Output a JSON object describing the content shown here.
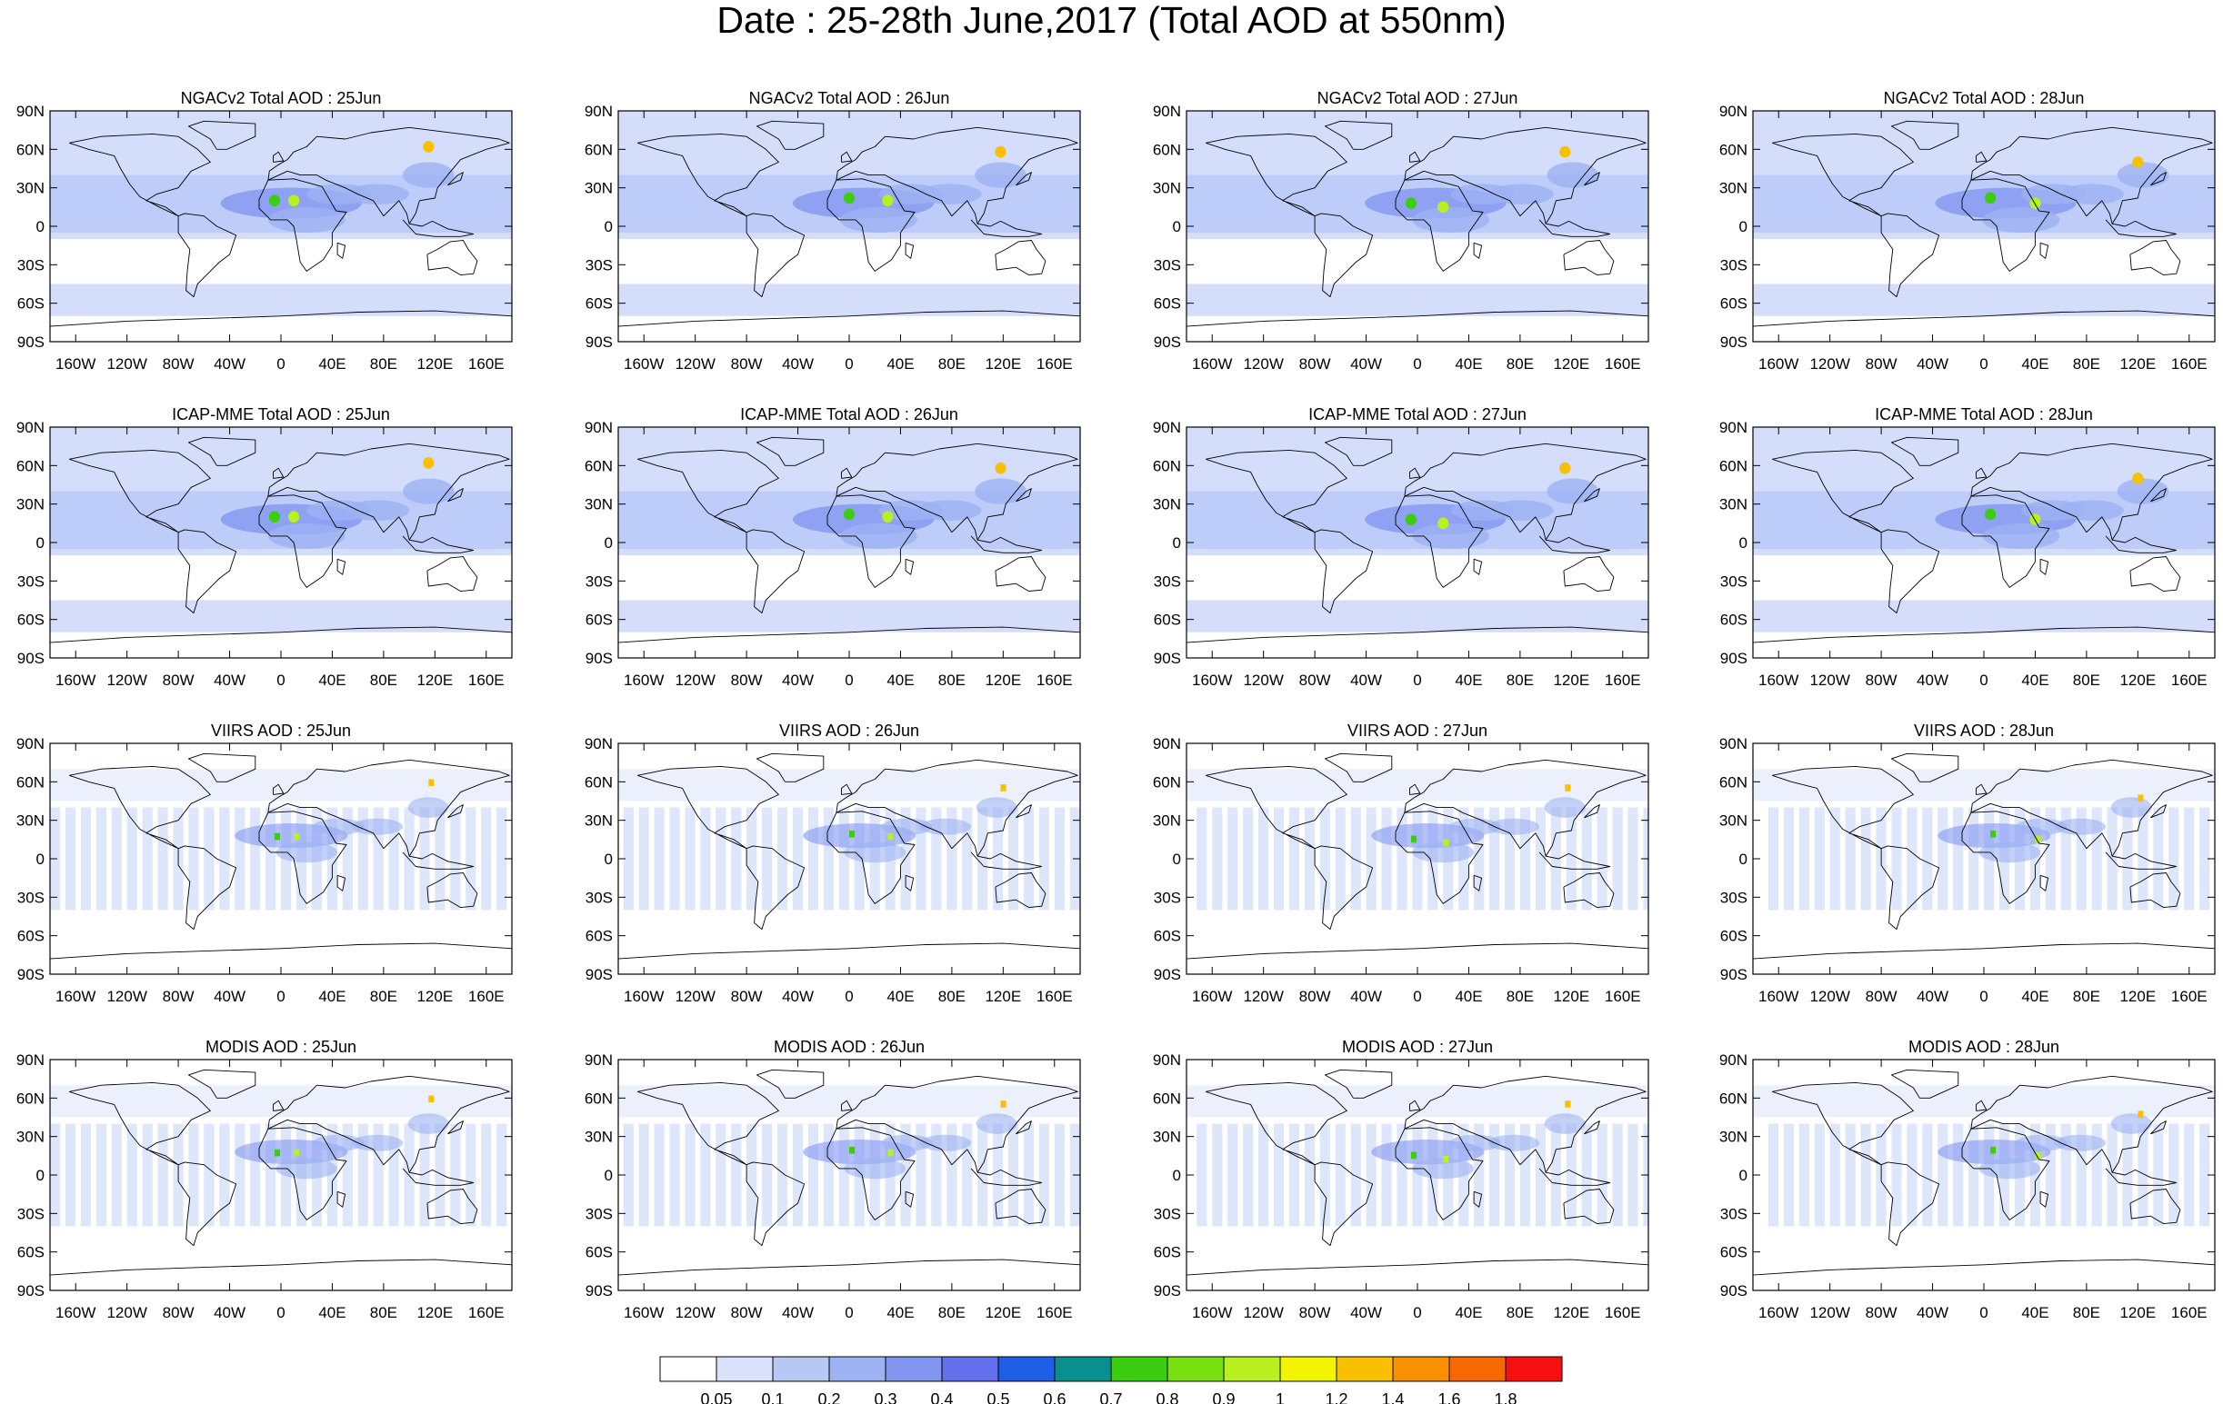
{
  "title": "Date : 25-28th June,2017 (Total AOD at 550nm)",
  "rows": [
    {
      "model": "NGACv2 Total AOD",
      "source_type": "model",
      "panels": [
        "NGACv2 Total AOD : 25Jun",
        "NGACv2 Total AOD : 26Jun",
        "NGACv2 Total AOD : 27Jun",
        "NGACv2 Total AOD : 28Jun"
      ]
    },
    {
      "model": "ICAP-MME Total AOD",
      "source_type": "model",
      "panels": [
        "ICAP-MME Total AOD : 25Jun",
        "ICAP-MME Total AOD : 26Jun",
        "ICAP-MME Total AOD : 27Jun",
        "ICAP-MME Total AOD : 28Jun"
      ]
    },
    {
      "model": "VIIRS AOD",
      "source_type": "satellite",
      "panels": [
        "VIIRS AOD : 25Jun",
        "VIIRS AOD : 26Jun",
        "VIIRS AOD : 27Jun",
        "VIIRS AOD : 28Jun"
      ]
    },
    {
      "model": "MODIS AOD",
      "source_type": "satellite",
      "panels": [
        "MODIS AOD : 25Jun",
        "MODIS AOD : 26Jun",
        "MODIS AOD : 27Jun",
        "MODIS AOD : 28Jun"
      ]
    }
  ],
  "lat_ticks": [
    "90N",
    "60N",
    "30N",
    "0",
    "30S",
    "60S",
    "90S"
  ],
  "lon_ticks": [
    "160W",
    "120W",
    "80W",
    "40W",
    "0",
    "40E",
    "80E",
    "120E",
    "160E"
  ],
  "lon_tick_values": [
    -160,
    -120,
    -80,
    -40,
    0,
    40,
    80,
    120,
    160
  ],
  "lat_tick_values": [
    90,
    60,
    30,
    0,
    -30,
    -60,
    -90
  ],
  "colorbar": {
    "labels": [
      "0.05",
      "0.1",
      "0.2",
      "0.3",
      "0.4",
      "0.5",
      "0.6",
      "0.7",
      "0.8",
      "0.9",
      "1",
      "1.2",
      "1.4",
      "1.6",
      "1.8"
    ],
    "colors": [
      "#ffffff",
      "#d8e2fa",
      "#b8c8f4",
      "#9cb2f2",
      "#8296f0",
      "#6470ec",
      "#1f5ee6",
      "#0a8f8f",
      "#3ccc10",
      "#78e010",
      "#b8f020",
      "#f4f400",
      "#f8c000",
      "#f89000",
      "#f86800",
      "#f81010"
    ]
  },
  "map_colors": {
    "land_line": "#000000",
    "background_low": "#ffffff",
    "aod_low": "#d4defa",
    "aod_mid": "#a9bdf5"
  }
}
